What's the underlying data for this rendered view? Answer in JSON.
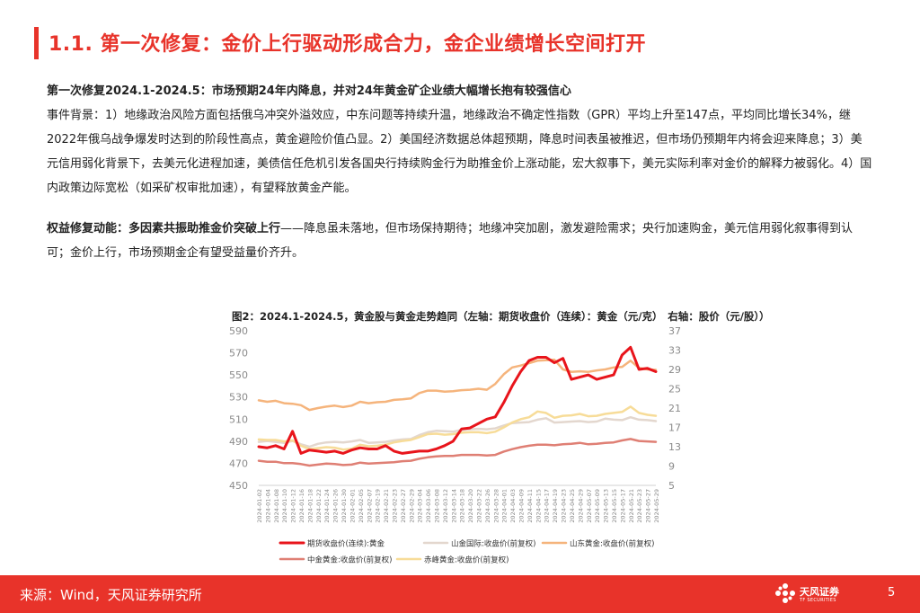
{
  "page": {
    "title": "1.1. 第一次修复：金价上行驱动形成合力，金企业绩增长空间打开",
    "heading": "第一次修复2024.1-2024.5：市场预期24年内降息，并对24年黄金矿企业绩大幅增长抱有较强信心",
    "para1": "事件背景：1）地缘政治风险方面包括俄乌冲突外溢效应，中东问题等持续升温，地缘政治不确定性指数（GPR）平均上升至147点，平均同比增长34%，继2022年俄乌战争爆发时达到的阶段性高点，黄金避险价值凸显。2）美国经济数据总体超预期，降息时间表虽被推迟，但市场仍预期年内将会迎来降息；3）美元信用弱化背景下，去美元化进程加速，美债信任危机引发各国央行持续购金行为助推金价上涨动能，宏大叙事下，美元实际利率对金价的解释力被弱化。4）国内政策边际宽松（如采矿权审批加速），有望释放黄金产能。",
    "para2_bold": "权益修复动能：多因素共振助推金价突破上行",
    "para2_rest": "——降息虽未落地，但市场保持期待；地缘冲突加剧，激发避险需求；央行加速购金，美元信用弱化叙事得到认可；金价上行，市场预期金企有望受益量价齐升。",
    "caption": "图2：2024.1-2024.5，黄金股与黄金走势趋同（左轴：期货收盘价（连续）：黄金（元/克）　右轴：股价（元/股））",
    "source": "来源：Wind，天风证券研究所",
    "logo_text": "天风证券",
    "logo_sub": "TF SECURITIES",
    "page_number": "5"
  },
  "colors": {
    "accent": "#e8332a",
    "gold_futures": "#e8141b",
    "shandong": "#f5b47c",
    "shanjin": "#e3d7ce",
    "zhongjin": "#df7f74",
    "chifeng": "#f7dc98"
  },
  "chart_data": {
    "type": "line",
    "x": [
      "2024-01-02",
      "2024-01-04",
      "2024-01-08",
      "2024-01-10",
      "2024-01-12",
      "2024-01-16",
      "2024-01-18",
      "2024-01-22",
      "2024-01-24",
      "2024-01-26",
      "2024-01-30",
      "2024-02-01",
      "2024-02-05",
      "2024-02-07",
      "2024-02-19",
      "2024-02-21",
      "2024-02-23",
      "2024-02-27",
      "2024-02-29",
      "2024-03-04",
      "2024-03-06",
      "2024-03-08",
      "2024-03-12",
      "2024-03-14",
      "2024-03-18",
      "2024-03-20",
      "2024-03-22",
      "2024-03-26",
      "2024-03-28",
      "2024-04-01",
      "2024-04-03",
      "2024-04-09",
      "2024-04-11",
      "2024-04-15",
      "2024-04-17",
      "2024-04-19",
      "2024-04-23",
      "2024-04-25",
      "2024-04-29",
      "2024-05-07",
      "2024-05-09",
      "2024-05-13",
      "2024-05-15",
      "2024-05-17",
      "2024-05-21",
      "2024-05-23",
      "2024-05-27",
      "2024-05-29"
    ],
    "x_tick_labels": [
      "2024-01-02",
      "2024-01-04",
      "2024-01-08",
      "2024-01-10",
      "2024-01-12",
      "2024-01-16",
      "2024-01-18",
      "2024-01-22",
      "2024-01-24",
      "2024-01-26",
      "2024-01-30",
      "2024-02-01",
      "2024-02-05",
      "2024-02-07",
      "2024-02-19",
      "2024-02-21",
      "2024-02-23",
      "2024-02-27",
      "2024-02-29",
      "2024-03-04",
      "2024-03-06",
      "2024-03-08",
      "2024-03-12",
      "2024-03-14",
      "2024-03-18",
      "2024-03-20",
      "2024-03-22",
      "2024-03-26",
      "2024-03-28",
      "2024-04-01",
      "2024-04-03",
      "2024-04-09",
      "2024-04-11",
      "2024-04-15",
      "2024-04-17",
      "2024-04-19",
      "2024-04-23",
      "2024-04-25",
      "2024-04-29",
      "2024-05-07",
      "2024-05-09",
      "2024-05-13",
      "2024-05-15",
      "2024-05-17",
      "2024-05-21",
      "2024-05-23",
      "2024-05-27",
      "2024-05-29"
    ],
    "y_left": {
      "min": 450,
      "max": 590,
      "ticks": [
        450,
        470,
        490,
        510,
        530,
        550,
        570,
        590
      ]
    },
    "y_right": {
      "min": 5,
      "max": 37,
      "ticks": [
        5,
        9,
        13,
        17,
        21,
        25,
        29,
        33,
        37
      ]
    },
    "series": [
      {
        "name": "期货收盘价(连续):黄金",
        "axis": "left",
        "color": "#e8141b",
        "width": 3,
        "values": [
          485,
          484,
          486,
          483,
          499,
          479,
          482,
          481,
          480,
          481,
          479,
          482,
          484,
          483,
          483,
          486,
          481,
          479,
          480,
          481,
          481,
          483,
          486,
          490,
          501,
          502,
          506,
          510,
          512,
          525,
          540,
          553,
          563,
          566,
          566,
          561,
          565,
          546,
          548,
          550,
          546,
          548,
          550,
          568,
          575,
          555,
          556,
          553
        ]
      },
      {
        "name": "山金国际:收盘价(前复权)",
        "axis": "right",
        "color": "#e3d7ce",
        "width": 2.5,
        "values": [
          14.0,
          14.2,
          14.0,
          13.8,
          14.2,
          13.5,
          13.0,
          13.6,
          13.9,
          14.0,
          13.9,
          14.1,
          14.4,
          13.8,
          13.9,
          14.0,
          14.3,
          14.5,
          14.6,
          15.4,
          16.0,
          16.3,
          16.2,
          16.1,
          16.5,
          16.6,
          16.7,
          16.6,
          16.8,
          17.4,
          17.9,
          18.0,
          18.1,
          18.6,
          18.9,
          18.0,
          18.1,
          18.2,
          18.3,
          18.1,
          18.2,
          18.8,
          18.6,
          18.5,
          19.1,
          18.6,
          18.5,
          18.3
        ]
      },
      {
        "name": "山东黄金:收盘价(前复权)",
        "axis": "right",
        "color": "#f5b47c",
        "width": 2.5,
        "values": [
          22.6,
          22.3,
          22.5,
          22.0,
          21.9,
          21.6,
          20.6,
          21.0,
          21.3,
          21.5,
          21.2,
          21.5,
          22.3,
          22.0,
          22.2,
          22.3,
          22.7,
          22.8,
          23.0,
          24.1,
          24.6,
          24.6,
          24.4,
          24.5,
          24.7,
          24.8,
          25.0,
          24.8,
          26.0,
          28.0,
          29.4,
          29.8,
          30.3,
          30.8,
          30.9,
          31.0,
          29.0,
          28.5,
          28.6,
          28.5,
          28.8,
          29.0,
          29.4,
          29.5,
          30.8,
          29.3,
          29.0,
          28.9
        ]
      },
      {
        "name": "中金黄金:收盘价(前复权)",
        "axis": "right",
        "color": "#df7f74",
        "width": 2.5,
        "values": [
          10.1,
          9.9,
          9.9,
          9.6,
          9.6,
          9.4,
          9.1,
          9.3,
          9.5,
          9.4,
          9.2,
          9.3,
          9.7,
          9.5,
          9.6,
          9.7,
          9.8,
          10.0,
          10.1,
          10.5,
          10.8,
          11.0,
          11.1,
          11.1,
          11.3,
          11.3,
          11.3,
          11.2,
          11.3,
          12.0,
          12.5,
          12.9,
          13.2,
          13.4,
          13.4,
          13.3,
          13.5,
          13.6,
          13.8,
          13.5,
          13.6,
          13.8,
          13.9,
          14.3,
          14.6,
          14.2,
          14.1,
          14.0
        ]
      },
      {
        "name": "赤峰黄金:收盘价(前复权)",
        "axis": "right",
        "color": "#f7dc98",
        "width": 2.5,
        "values": [
          14.5,
          14.4,
          14.4,
          14.1,
          14.3,
          13.2,
          12.5,
          12.7,
          12.9,
          12.8,
          12.4,
          12.6,
          13.4,
          13.1,
          13.2,
          13.4,
          13.9,
          14.2,
          14.4,
          15.0,
          15.6,
          15.7,
          15.5,
          15.6,
          15.9,
          16.0,
          16.0,
          15.8,
          16.1,
          17.0,
          18.0,
          18.7,
          19.1,
          20.3,
          20.0,
          19.0,
          19.4,
          19.5,
          19.8,
          19.3,
          19.4,
          19.8,
          20.0,
          20.2,
          21.3,
          20.0,
          19.6,
          19.4
        ]
      }
    ],
    "legend": {
      "position": "bottom"
    },
    "grid": false
  }
}
